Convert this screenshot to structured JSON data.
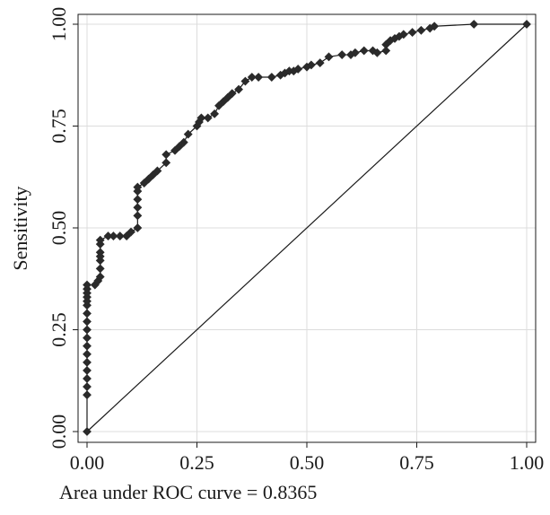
{
  "chart_data": {
    "type": "line",
    "title": "",
    "xlabel": "Area under ROC curve = 0.8365",
    "ylabel": "Sensitivity",
    "xlim": [
      0,
      1
    ],
    "ylim": [
      0,
      1
    ],
    "x_ticks": [
      "0.00",
      "0.25",
      "0.50",
      "0.75",
      "1.00"
    ],
    "y_ticks": [
      "0.00",
      "0.25",
      "0.50",
      "0.75",
      "1.00"
    ],
    "grid": true,
    "series": [
      {
        "marker": "diamond",
        "x": [
          0.0,
          0.0,
          0.0,
          0.0,
          0.0,
          0.0,
          0.0,
          0.0,
          0.0,
          0.0,
          0.0,
          0.0,
          0.0,
          0.0,
          0.0,
          0.0,
          0.0,
          0.0,
          0.018,
          0.025,
          0.03,
          0.03,
          0.03,
          0.03,
          0.03,
          0.03,
          0.03,
          0.048,
          0.06,
          0.075,
          0.09,
          0.1,
          0.115,
          0.115,
          0.115,
          0.115,
          0.115,
          0.115,
          0.13,
          0.14,
          0.15,
          0.16,
          0.18,
          0.18,
          0.2,
          0.21,
          0.22,
          0.23,
          0.25,
          0.255,
          0.26,
          0.275,
          0.29,
          0.3,
          0.31,
          0.32,
          0.33,
          0.345,
          0.36,
          0.375,
          0.39,
          0.42,
          0.44,
          0.45,
          0.46,
          0.47,
          0.48,
          0.5,
          0.51,
          0.53,
          0.55,
          0.58,
          0.6,
          0.61,
          0.63,
          0.65,
          0.66,
          0.68,
          0.68,
          0.69,
          0.7,
          0.71,
          0.72,
          0.74,
          0.76,
          0.78,
          0.79,
          0.88,
          1.0
        ],
        "y": [
          0.0,
          0.09,
          0.11,
          0.13,
          0.15,
          0.17,
          0.19,
          0.21,
          0.23,
          0.25,
          0.27,
          0.29,
          0.31,
          0.32,
          0.33,
          0.34,
          0.35,
          0.36,
          0.36,
          0.37,
          0.38,
          0.4,
          0.42,
          0.43,
          0.44,
          0.46,
          0.47,
          0.48,
          0.48,
          0.48,
          0.48,
          0.49,
          0.5,
          0.53,
          0.55,
          0.57,
          0.59,
          0.6,
          0.61,
          0.62,
          0.63,
          0.64,
          0.66,
          0.68,
          0.69,
          0.7,
          0.71,
          0.73,
          0.75,
          0.76,
          0.77,
          0.77,
          0.78,
          0.8,
          0.81,
          0.82,
          0.83,
          0.84,
          0.86,
          0.87,
          0.87,
          0.87,
          0.875,
          0.88,
          0.885,
          0.885,
          0.89,
          0.895,
          0.9,
          0.905,
          0.92,
          0.925,
          0.925,
          0.93,
          0.935,
          0.935,
          0.93,
          0.935,
          0.95,
          0.96,
          0.965,
          0.97,
          0.975,
          0.98,
          0.985,
          0.99,
          0.995,
          1.0,
          1.0
        ]
      },
      {
        "name": "",
        "x": [
          0,
          1
        ],
        "y": [
          0,
          1
        ]
      }
    ]
  }
}
